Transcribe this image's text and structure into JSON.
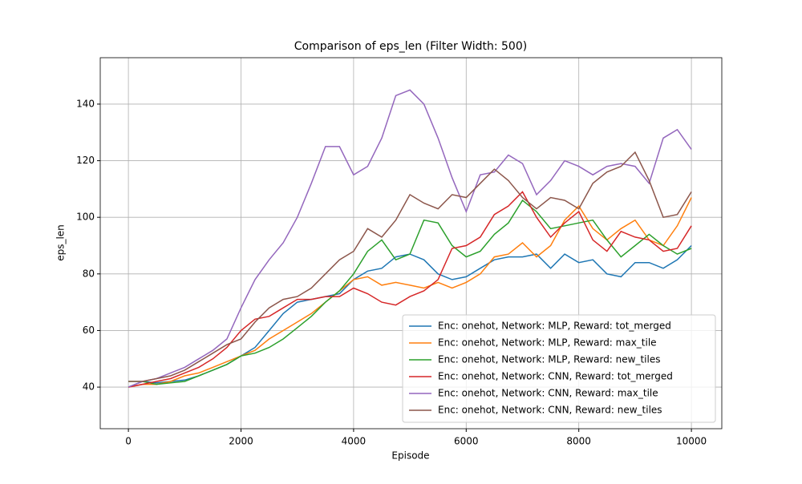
{
  "chart_data": {
    "type": "line",
    "title": "Comparison of eps_len (Filter Width: 500)",
    "x_label": "Episode",
    "y_label": "eps_len",
    "x": [
      0,
      250,
      500,
      750,
      1000,
      1250,
      1500,
      1750,
      2000,
      2250,
      2500,
      2750,
      3000,
      3250,
      3500,
      3750,
      4000,
      4250,
      4500,
      4750,
      5000,
      5250,
      5500,
      5750,
      6000,
      6250,
      6500,
      6750,
      7000,
      7250,
      7500,
      7750,
      8000,
      8250,
      8500,
      8750,
      9000,
      9250,
      9500,
      9750,
      10000
    ],
    "series": [
      {
        "name": "Enc: onehot, Network: MLP, Reward: tot_merged",
        "color": "#1f77b4",
        "values": [
          40,
          42,
          41.5,
          42,
          42.5,
          44,
          46,
          48,
          51,
          54,
          60,
          66,
          70,
          71,
          72,
          73,
          78,
          81,
          82,
          86,
          87,
          85,
          80,
          78,
          79,
          82,
          85,
          86,
          86,
          87,
          82,
          87,
          84,
          85,
          80,
          79,
          84,
          84,
          82,
          85,
          90
        ]
      },
      {
        "name": "Enc: onehot, Network: MLP, Reward: max_tile",
        "color": "#ff7f0e",
        "values": [
          40,
          41,
          41,
          42,
          44,
          45,
          47,
          49,
          51,
          53,
          57,
          60,
          63,
          66,
          70,
          74,
          78,
          79,
          76,
          77,
          76,
          75,
          77,
          75,
          77,
          80,
          86,
          87,
          91,
          86,
          90,
          99,
          104,
          96,
          92,
          96,
          99,
          92,
          90,
          97,
          107
        ]
      },
      {
        "name": "Enc: onehot, Network: MLP, Reward: new_tiles",
        "color": "#2ca02c",
        "values": [
          42,
          42,
          41,
          41.5,
          42,
          44,
          46,
          48,
          51,
          52,
          54,
          57,
          61,
          65,
          70,
          74,
          80,
          88,
          92,
          85,
          87,
          99,
          98,
          90,
          86,
          88,
          94,
          98,
          106,
          102,
          96,
          97,
          98,
          99,
          92,
          86,
          90,
          94,
          90,
          87,
          89
        ]
      },
      {
        "name": "Enc: onehot, Network: CNN, Reward: tot_merged",
        "color": "#d62728",
        "values": [
          40,
          41,
          42,
          43,
          45,
          47,
          50,
          54,
          60,
          64,
          65,
          68,
          71,
          71,
          72,
          72,
          75,
          73,
          70,
          69,
          72,
          74,
          78,
          89,
          90,
          93,
          101,
          104,
          109,
          100,
          93,
          98,
          102,
          92,
          88,
          95,
          93,
          92,
          88,
          89,
          97
        ]
      },
      {
        "name": "Enc: onehot, Network: CNN, Reward: max_tile",
        "color": "#9467bd",
        "values": [
          40,
          42,
          43,
          45,
          47,
          50,
          53,
          57,
          68,
          78,
          85,
          91,
          100,
          112,
          125,
          125,
          115,
          118,
          128,
          143,
          145,
          140,
          128,
          114,
          102,
          115,
          116,
          122,
          119,
          108,
          113,
          120,
          118,
          115,
          118,
          119,
          118,
          112,
          128,
          131,
          124
        ]
      },
      {
        "name": "Enc: onehot, Network: CNN, Reward: new_tiles",
        "color": "#8c564b",
        "values": [
          42,
          42,
          43,
          44,
          46,
          49,
          52,
          55,
          57,
          63,
          68,
          71,
          72,
          75,
          80,
          85,
          88,
          96,
          93,
          99,
          108,
          105,
          103,
          108,
          107,
          112,
          117,
          113,
          107,
          103,
          107,
          106,
          103,
          112,
          116,
          118,
          123,
          113,
          100,
          101,
          109
        ]
      }
    ],
    "xlim": [
      -500,
      10540
    ],
    "ylim": [
      25.3,
      156.4
    ],
    "xticks": [
      0,
      2000,
      4000,
      6000,
      8000,
      10000
    ],
    "yticks": [
      40,
      60,
      80,
      100,
      120,
      140
    ],
    "grid": true,
    "legend": "lower right"
  }
}
